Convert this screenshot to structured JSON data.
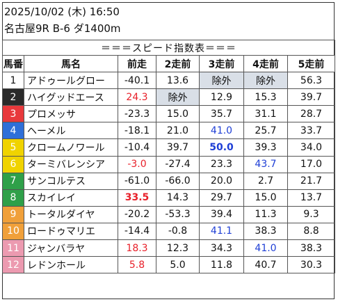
{
  "header": {
    "datetime": "2025/10/02 (木) 16:50",
    "race": "名古屋9R B-6 ダ1400m"
  },
  "table": {
    "title": "＝＝＝スピード指数表＝＝＝",
    "columns": [
      "馬番",
      "馬名",
      "前走",
      "2走前",
      "3走前",
      "4走前",
      "5走前"
    ],
    "rows": [
      {
        "num": "1",
        "name": "アドゥールグロー",
        "r1": "-40.1",
        "r2": "13.6",
        "r3": "除外",
        "r4": "除外",
        "r5": "56.3"
      },
      {
        "num": "2",
        "name": "ハイグッドエース",
        "r1": "24.3",
        "r2": "除外",
        "r3": "12.9",
        "r4": "15.3",
        "r5": "39.7"
      },
      {
        "num": "3",
        "name": "プロメッサ",
        "r1": "-23.3",
        "r2": "15.0",
        "r3": "35.7",
        "r4": "31.1",
        "r5": "28.7"
      },
      {
        "num": "4",
        "name": "ヘーメル",
        "r1": "-18.1",
        "r2": "21.0",
        "r3": "41.0",
        "r4": "25.7",
        "r5": "33.7"
      },
      {
        "num": "5",
        "name": "クロームノワール",
        "r1": "-10.4",
        "r2": "39.7",
        "r3": "50.0",
        "r4": "39.3",
        "r5": "34.0"
      },
      {
        "num": "6",
        "name": "ターミバレンシア",
        "r1": "-3.0",
        "r2": "-27.4",
        "r3": "23.3",
        "r4": "43.7",
        "r5": "17.0"
      },
      {
        "num": "7",
        "name": "サンコルテス",
        "r1": "-61.0",
        "r2": "-66.0",
        "r3": "20.0",
        "r4": "2.7",
        "r5": "21.7"
      },
      {
        "num": "8",
        "name": "スカイレイ",
        "r1": "33.5",
        "r2": "14.3",
        "r3": "29.7",
        "r4": "15.0",
        "r5": "13.7"
      },
      {
        "num": "9",
        "name": "トータルダイヤ",
        "r1": "-20.2",
        "r2": "-53.3",
        "r3": "39.4",
        "r4": "11.3",
        "r5": "9.3"
      },
      {
        "num": "10",
        "name": "ロードゥマリエ",
        "r1": "-14.4",
        "r2": "-0.8",
        "r3": "41.1",
        "r4": "38.3",
        "r5": "8.8"
      },
      {
        "num": "11",
        "name": "ジャンバラヤ",
        "r1": "18.3",
        "r2": "12.3",
        "r3": "34.3",
        "r4": "41.0",
        "r5": "38.3"
      },
      {
        "num": "12",
        "name": "レドンホール",
        "r1": "5.8",
        "r2": "5.0",
        "r3": "11.8",
        "r4": "40.7",
        "r5": "30.3"
      }
    ]
  },
  "colors": {
    "red": "#e8202a",
    "blue": "#1f3fd6",
    "excluded_bg": "#d9dfe7"
  }
}
